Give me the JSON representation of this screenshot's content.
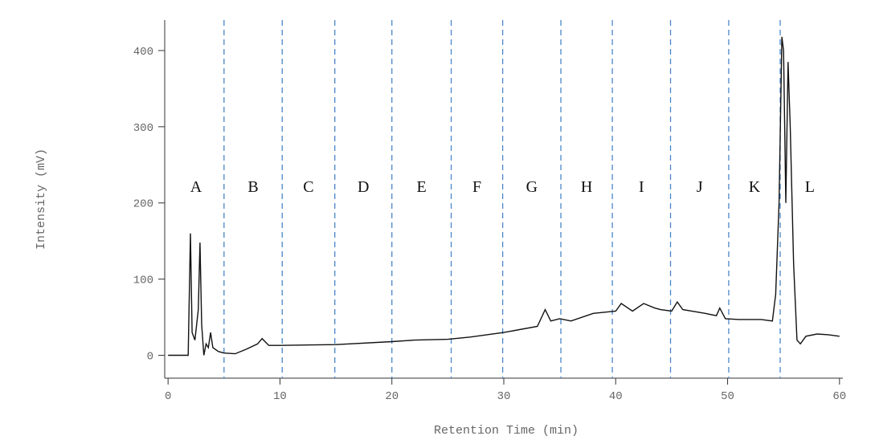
{
  "chart_data": {
    "type": "line",
    "x_label": "Retention Time (min)",
    "y_label": "Intensity (mV)",
    "xlim": [
      -0.3,
      60.3
    ],
    "ylim": [
      -30,
      440
    ],
    "xticks": [
      0,
      10,
      20,
      30,
      40,
      50,
      60
    ],
    "yticks": [
      0,
      100,
      200,
      300,
      400
    ],
    "dividers": [
      5.0,
      10.2,
      14.9,
      20.0,
      25.3,
      29.9,
      35.1,
      39.7,
      44.9,
      50.1,
      54.7
    ],
    "divider_color": "#4a86c8",
    "regions": [
      "A",
      "B",
      "C",
      "D",
      "E",
      "F",
      "G",
      "H",
      "I",
      "J",
      "K",
      "L"
    ],
    "series": [
      {
        "color": "#111111",
        "x": [
          0,
          1.8,
          2.0,
          2.15,
          2.4,
          2.7,
          2.85,
          3.0,
          3.2,
          3.4,
          3.6,
          3.8,
          4.0,
          4.5,
          5,
          6,
          7,
          8,
          8.4,
          9,
          10,
          15,
          20,
          22,
          25,
          27,
          30,
          33,
          33.7,
          34.2,
          35,
          36,
          38,
          40,
          40.5,
          41.5,
          42.5,
          43.5,
          44,
          45,
          45.5,
          46,
          48,
          49,
          49.3,
          49.8,
          51,
          53,
          54,
          54.3,
          54.6,
          54.85,
          55.0,
          55.2,
          55.4,
          55.6,
          55.9,
          56.2,
          56.5,
          57,
          58,
          59,
          60
        ],
        "values": [
          0,
          0,
          160,
          30,
          20,
          60,
          148,
          40,
          0,
          15,
          10,
          30,
          10,
          5,
          3,
          2,
          8,
          15,
          22,
          13,
          13,
          14,
          18,
          20,
          21,
          24,
          30,
          38,
          60,
          45,
          48,
          45,
          55,
          58,
          68,
          58,
          68,
          62,
          60,
          58,
          70,
          60,
          55,
          52,
          62,
          48,
          47,
          47,
          45,
          80,
          200,
          418,
          400,
          200,
          385,
          300,
          120,
          20,
          15,
          25,
          28,
          27,
          25
        ]
      }
    ]
  }
}
